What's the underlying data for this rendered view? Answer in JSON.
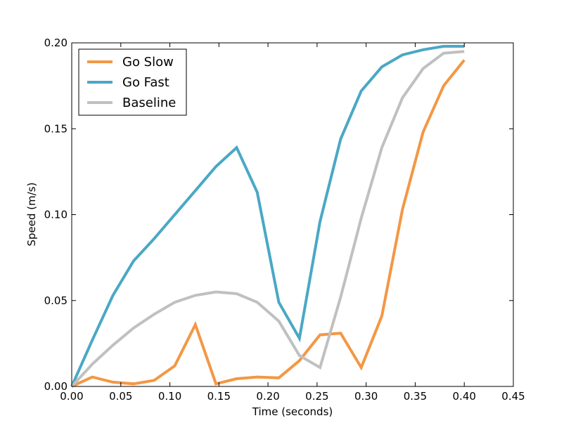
{
  "chart_data": {
    "type": "line",
    "title": "",
    "xlabel": "Time (seconds)",
    "ylabel": "Speed (m/s)",
    "xlim": [
      0,
      0.45
    ],
    "ylim": [
      0,
      0.2
    ],
    "xticks": [
      0,
      0.05,
      0.1,
      0.15,
      0.2,
      0.25,
      0.3,
      0.35,
      0.4,
      0.45
    ],
    "xtick_labels": [
      "0.00",
      "0.05",
      "0.10",
      "0.15",
      "0.20",
      "0.25",
      "0.30",
      "0.35",
      "0.40",
      "0.45"
    ],
    "yticks": [
      0,
      0.05,
      0.1,
      0.15,
      0.2
    ],
    "ytick_labels": [
      "0.00",
      "0.05",
      "0.10",
      "0.15",
      "0.20"
    ],
    "grid": false,
    "legend_position": "top-left",
    "x": [
      0.0,
      0.021,
      0.042,
      0.063,
      0.084,
      0.105,
      0.126,
      0.147,
      0.168,
      0.189,
      0.211,
      0.232,
      0.253,
      0.274,
      0.295,
      0.316,
      0.337,
      0.358,
      0.379,
      0.4
    ],
    "series": [
      {
        "name": "Go Slow",
        "color": "#f39744",
        "values": [
          0.0,
          0.0055,
          0.0025,
          0.0015,
          0.0035,
          0.012,
          0.036,
          0.0015,
          0.0045,
          0.0055,
          0.005,
          0.015,
          0.03,
          0.031,
          0.011,
          0.041,
          0.103,
          0.148,
          0.175,
          0.19
        ]
      },
      {
        "name": "Go Fast",
        "color": "#4aa8c5",
        "values": [
          0.0,
          0.027,
          0.053,
          0.073,
          0.086,
          0.1,
          0.114,
          0.128,
          0.139,
          0.113,
          0.049,
          0.028,
          0.096,
          0.144,
          0.172,
          0.186,
          0.193,
          0.196,
          0.198,
          0.198
        ]
      },
      {
        "name": "Baseline",
        "color": "#c0c0c0",
        "values": [
          0.0,
          0.013,
          0.024,
          0.034,
          0.042,
          0.049,
          0.053,
          0.055,
          0.054,
          0.049,
          0.038,
          0.018,
          0.011,
          0.052,
          0.098,
          0.139,
          0.168,
          0.185,
          0.194,
          0.195
        ]
      }
    ]
  }
}
